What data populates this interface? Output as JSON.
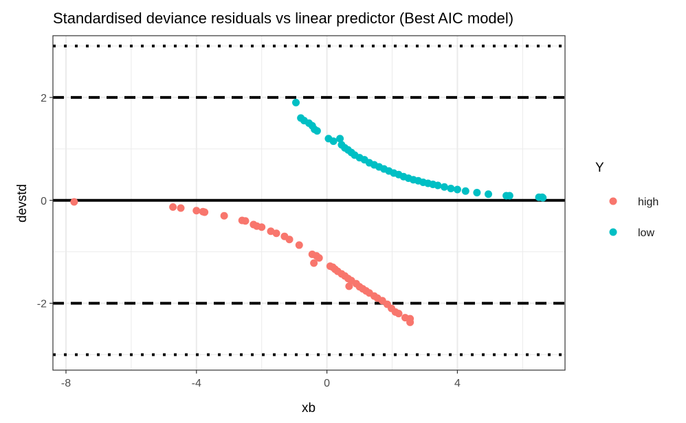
{
  "chart_data": {
    "type": "scatter",
    "title": "Standardised deviance residuals vs linear predictor (Best AIC model)",
    "xlabel": "xb",
    "ylabel": "devstd",
    "xlim": [
      -8.4,
      7.3
    ],
    "ylim": [
      -3.3,
      3.2
    ],
    "x_ticks": [
      -8,
      -4,
      0,
      4
    ],
    "x_tick_labels": [
      "-8",
      "-4",
      "0",
      "4"
    ],
    "y_ticks": [
      -2,
      0,
      2
    ],
    "y_tick_labels": [
      "-2",
      "0",
      "2"
    ],
    "x_minor_grid": [
      -6,
      -2,
      2,
      6
    ],
    "y_minor_grid": [
      -3,
      -1,
      1,
      3
    ],
    "grid": true,
    "reference_lines": [
      {
        "y": 0,
        "style": "solid"
      },
      {
        "y": 2,
        "style": "dashed"
      },
      {
        "y": -2,
        "style": "dashed"
      },
      {
        "y": 3,
        "style": "dotted"
      },
      {
        "y": -3,
        "style": "dotted"
      }
    ],
    "legend": {
      "title": "Y",
      "position": "right"
    },
    "series": [
      {
        "name": "high",
        "color": "#F8766D",
        "points": [
          [
            -7.75,
            -0.03
          ],
          [
            -4.72,
            -0.13
          ],
          [
            -4.48,
            -0.15
          ],
          [
            -4.0,
            -0.2
          ],
          [
            -3.8,
            -0.22
          ],
          [
            -3.75,
            -0.23
          ],
          [
            -3.15,
            -0.3
          ],
          [
            -2.6,
            -0.39
          ],
          [
            -2.5,
            -0.4
          ],
          [
            -2.25,
            -0.47
          ],
          [
            -2.15,
            -0.5
          ],
          [
            -2.0,
            -0.52
          ],
          [
            -1.72,
            -0.6
          ],
          [
            -1.55,
            -0.64
          ],
          [
            -1.3,
            -0.7
          ],
          [
            -1.15,
            -0.76
          ],
          [
            -0.85,
            -0.87
          ],
          [
            -0.45,
            -1.05
          ],
          [
            -0.32,
            -1.08
          ],
          [
            -0.24,
            -1.12
          ],
          [
            -0.4,
            -1.22
          ],
          [
            0.1,
            -1.28
          ],
          [
            0.18,
            -1.3
          ],
          [
            0.25,
            -1.34
          ],
          [
            0.33,
            -1.38
          ],
          [
            0.45,
            -1.43
          ],
          [
            0.55,
            -1.47
          ],
          [
            0.65,
            -1.52
          ],
          [
            0.75,
            -1.56
          ],
          [
            0.68,
            -1.67
          ],
          [
            0.9,
            -1.62
          ],
          [
            1.0,
            -1.68
          ],
          [
            1.1,
            -1.72
          ],
          [
            1.2,
            -1.76
          ],
          [
            1.3,
            -1.8
          ],
          [
            1.45,
            -1.86
          ],
          [
            1.55,
            -1.9
          ],
          [
            1.7,
            -1.95
          ],
          [
            1.85,
            -2.02
          ],
          [
            1.98,
            -2.1
          ],
          [
            2.1,
            -2.17
          ],
          [
            2.2,
            -2.2
          ],
          [
            2.4,
            -2.28
          ],
          [
            2.55,
            -2.3
          ],
          [
            2.55,
            -2.37
          ]
        ]
      },
      {
        "name": "low",
        "color": "#00BFC4",
        "points": [
          [
            -0.95,
            1.9
          ],
          [
            -0.8,
            1.6
          ],
          [
            -0.7,
            1.55
          ],
          [
            -0.55,
            1.5
          ],
          [
            -0.45,
            1.45
          ],
          [
            -0.38,
            1.38
          ],
          [
            -0.3,
            1.35
          ],
          [
            0.05,
            1.2
          ],
          [
            0.2,
            1.15
          ],
          [
            0.4,
            1.2
          ],
          [
            0.45,
            1.08
          ],
          [
            0.55,
            1.02
          ],
          [
            0.65,
            0.98
          ],
          [
            0.75,
            0.93
          ],
          [
            0.85,
            0.88
          ],
          [
            1.0,
            0.83
          ],
          [
            1.15,
            0.79
          ],
          [
            1.3,
            0.73
          ],
          [
            1.45,
            0.69
          ],
          [
            1.6,
            0.65
          ],
          [
            1.75,
            0.61
          ],
          [
            1.9,
            0.57
          ],
          [
            2.05,
            0.53
          ],
          [
            2.2,
            0.5
          ],
          [
            2.35,
            0.46
          ],
          [
            2.5,
            0.43
          ],
          [
            2.65,
            0.4
          ],
          [
            2.8,
            0.38
          ],
          [
            2.95,
            0.35
          ],
          [
            3.1,
            0.33
          ],
          [
            3.25,
            0.31
          ],
          [
            3.4,
            0.29
          ],
          [
            3.6,
            0.26
          ],
          [
            3.8,
            0.23
          ],
          [
            4.0,
            0.21
          ],
          [
            4.25,
            0.18
          ],
          [
            4.6,
            0.15
          ],
          [
            4.95,
            0.12
          ],
          [
            5.5,
            0.09
          ],
          [
            5.6,
            0.09
          ],
          [
            6.5,
            0.06
          ],
          [
            6.6,
            0.06
          ],
          [
            6.62,
            0.05
          ]
        ]
      }
    ]
  }
}
